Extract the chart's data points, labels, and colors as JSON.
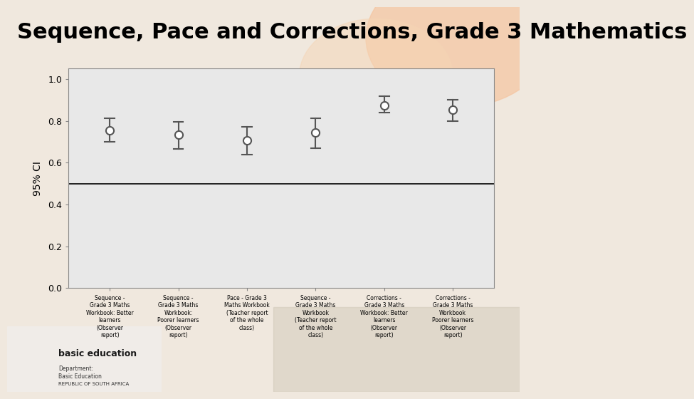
{
  "title": "Sequence, Pace and Corrections, Grade 3 Mathematics",
  "title_fontsize": 22,
  "title_bg_color": "#E8632A",
  "title_text_color": "#1a1a1a",
  "ylabel": "95% CI",
  "ylim": [
    0.0,
    1.05
  ],
  "yticks": [
    0.0,
    0.2,
    0.4,
    0.6,
    0.8,
    1.0
  ],
  "hline_y": 0.5,
  "categories": [
    "Sequence -\nGrade 3 Maths\nWorkbook: Better\nlearners\n(Observer\nreport)",
    "Sequence -\nGrade 3 Maths\nWorkbook:\nPoorer learners\n(Observer\nreport)",
    "Pace - Grade 3\nMaths Workbook\n(Teacher report\nof the whole\nclass)",
    "Sequence -\nGrade 3 Maths\nWorkbook\n(Teacher report\nof the whole\nclass)",
    "Corrections -\nGrade 3 Maths\nWorkbook: Better\nlearners\n(Observer\nreport)",
    "Corrections -\nGrade 3 Maths\nWorkbook\nPoorer learners\n(Observer\nreport)"
  ],
  "means": [
    0.756,
    0.733,
    0.706,
    0.745,
    0.874,
    0.853
  ],
  "ci_lower": [
    0.699,
    0.665,
    0.637,
    0.668,
    0.84,
    0.8
  ],
  "ci_upper": [
    0.813,
    0.797,
    0.773,
    0.813,
    0.917,
    0.9
  ],
  "point_color": "white",
  "point_edge_color": "#555555",
  "error_color": "#555555",
  "bg_color_top": "#f5dece",
  "bg_color_slide": "#f0ece8",
  "plot_bg": "#e8e8e8",
  "axis_bg": "#e8e8e8"
}
